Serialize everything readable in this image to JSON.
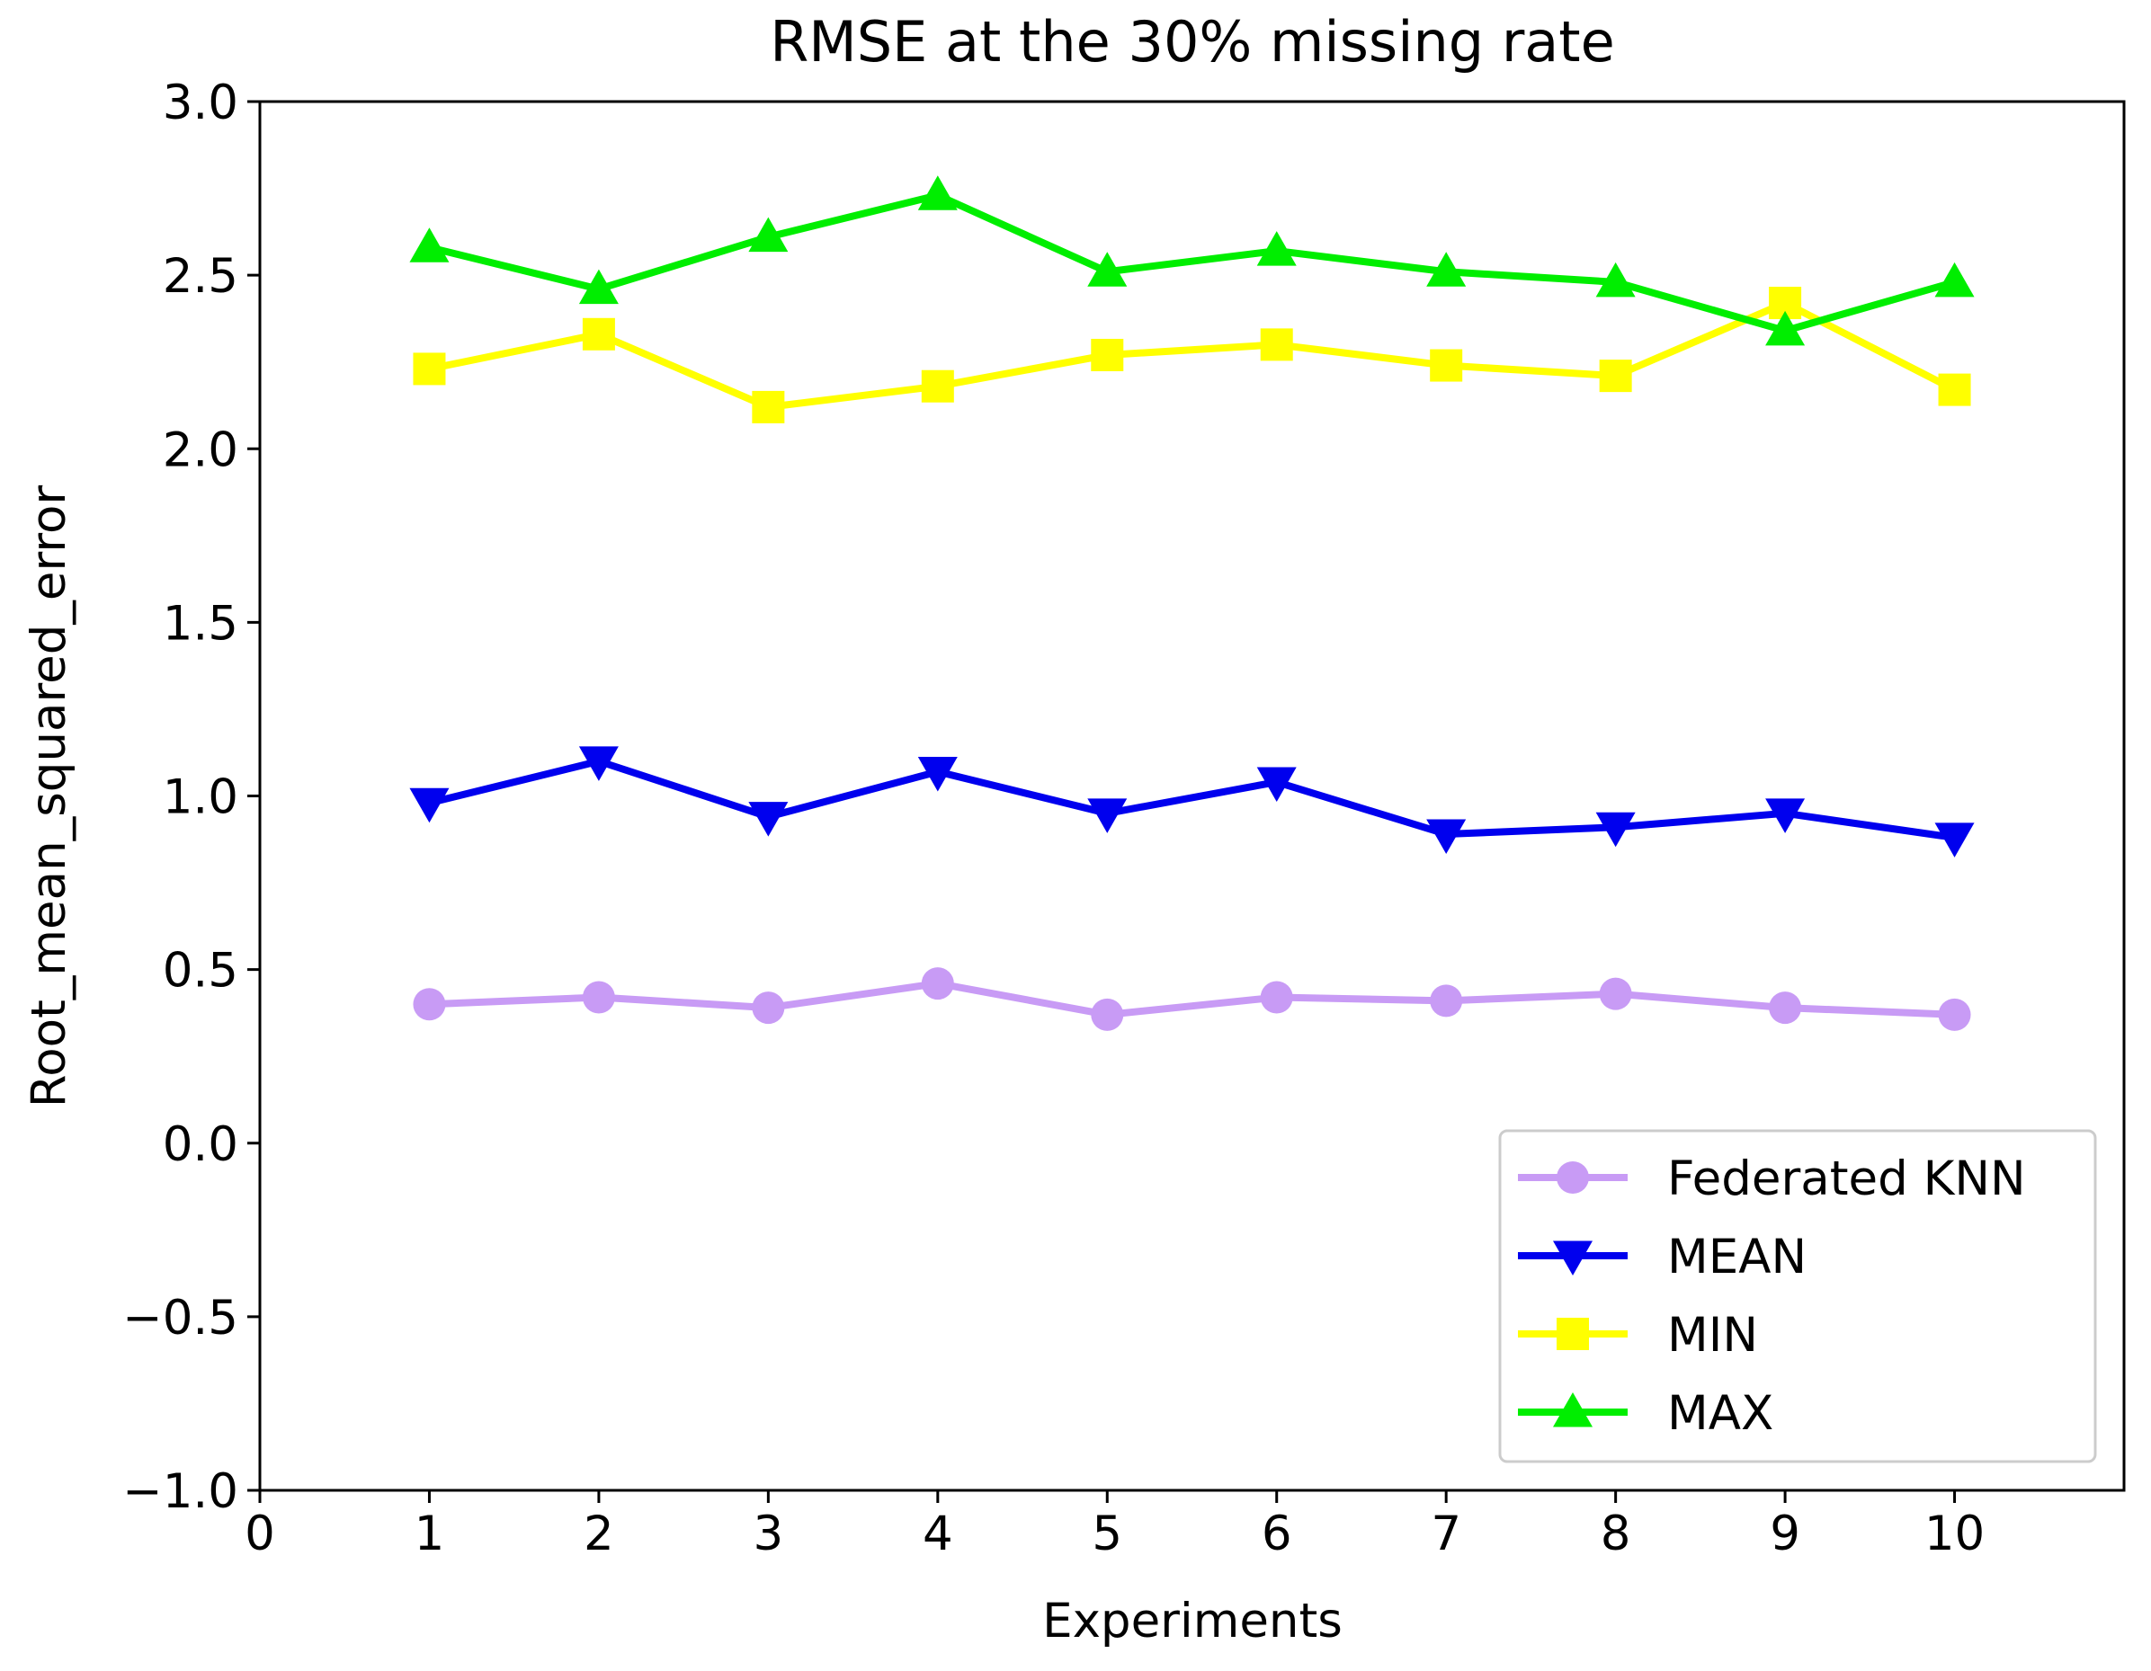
{
  "chart_data": {
    "type": "line",
    "title": "RMSE at the 30% missing rate",
    "xlabel": "Experiments",
    "ylabel": "Root_mean_squared_error",
    "xlim": [
      0,
      11
    ],
    "ylim": [
      -1.0,
      3.0
    ],
    "xticks": [
      0,
      1,
      2,
      3,
      4,
      5,
      6,
      7,
      8,
      9,
      10
    ],
    "xtick_labels": [
      "0",
      "1",
      "2",
      "3",
      "4",
      "5",
      "6",
      "7",
      "8",
      "9",
      "10"
    ],
    "yticks": [
      -1.0,
      -0.5,
      0.0,
      0.5,
      1.0,
      1.5,
      2.0,
      2.5,
      3.0
    ],
    "ytick_labels": [
      "−1.0",
      "−0.5",
      "0.0",
      "0.5",
      "1.0",
      "1.5",
      "2.0",
      "2.5",
      "3.0"
    ],
    "grid": false,
    "legend_position": "lower-right",
    "x": [
      1,
      2,
      3,
      4,
      5,
      6,
      7,
      8,
      9,
      10
    ],
    "series": [
      {
        "name": "Federated KNN",
        "color": "#c89bf5",
        "marker": "circle",
        "values": [
          0.4,
          0.42,
          0.39,
          0.46,
          0.37,
          0.42,
          0.41,
          0.43,
          0.39,
          0.37
        ]
      },
      {
        "name": "MEAN",
        "color": "#0000ee",
        "marker": "triangle-down",
        "values": [
          0.98,
          1.1,
          0.94,
          1.07,
          0.95,
          1.04,
          0.89,
          0.91,
          0.95,
          0.88
        ]
      },
      {
        "name": "MIN",
        "color": "#ffff00",
        "marker": "square",
        "values": [
          2.23,
          2.33,
          2.12,
          2.18,
          2.27,
          2.3,
          2.24,
          2.21,
          2.42,
          2.17
        ]
      },
      {
        "name": "MAX",
        "color": "#00ee00",
        "marker": "triangle-up",
        "values": [
          2.58,
          2.46,
          2.61,
          2.73,
          2.51,
          2.57,
          2.51,
          2.48,
          2.34,
          2.48
        ]
      }
    ]
  }
}
